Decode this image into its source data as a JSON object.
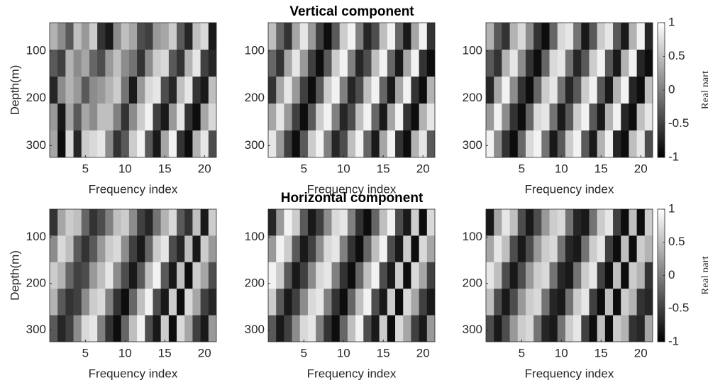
{
  "chart_data": [
    {
      "type": "heatmap",
      "title": "Vertical component",
      "xlabel": "Frequency index",
      "ylabel": "Depth(m)",
      "x": [
        1,
        2,
        3,
        4,
        5,
        6,
        7,
        8,
        9,
        10,
        11,
        12,
        13,
        14,
        15,
        16,
        17,
        18,
        19,
        20,
        21
      ],
      "y": [
        68.5,
        125.5,
        182.5,
        239.5,
        296.5
      ],
      "xlim": [
        0.5,
        21.5
      ],
      "ylim": [
        40,
        325
      ],
      "y_reverse": true,
      "xticks": [
        5,
        10,
        15,
        20
      ],
      "yticks": [
        100,
        200,
        300
      ],
      "values": [
        [
          0.4,
          0.1,
          -0.3,
          0.5,
          0.2,
          0.6,
          -0.6,
          -0.8,
          0.1,
          0.5,
          0.3,
          -0.4,
          -0.5,
          0.2,
          0.3,
          0.6,
          -0.3,
          -0.7,
          0.5,
          0.7,
          -0.8
        ],
        [
          -0.3,
          -0.5,
          0.4,
          0.1,
          0.3,
          -0.2,
          -0.4,
          0.2,
          0.5,
          0.1,
          -0.1,
          -0.6,
          0.1,
          0.6,
          0.7,
          -0.3,
          -0.6,
          0.4,
          0.8,
          -0.5,
          -0.7
        ],
        [
          -0.7,
          0.1,
          0.4,
          0.2,
          -0.3,
          0.1,
          0.2,
          0.4,
          0.6,
          -0.1,
          -0.8,
          0.2,
          0.7,
          0.8,
          -0.4,
          -0.7,
          0.5,
          0.8,
          -0.6,
          -0.8,
          0.5
        ],
        [
          0.2,
          -0.8,
          0.3,
          -0.3,
          0.3,
          0.1,
          0.5,
          0.5,
          0.0,
          -0.6,
          0.1,
          0.6,
          0.9,
          -0.5,
          -0.8,
          0.2,
          0.8,
          -0.6,
          -0.9,
          0.3,
          0.7
        ],
        [
          0.3,
          -0.9,
          0.7,
          -0.7,
          0.6,
          0.7,
          0.8,
          0.1,
          -0.6,
          -0.3,
          0.6,
          0.9,
          -0.3,
          -0.8,
          0.3,
          0.9,
          -0.6,
          -0.9,
          0.4,
          0.8,
          -0.4
        ]
      ]
    },
    {
      "type": "heatmap",
      "xlabel": "Frequency index",
      "x": [
        1,
        2,
        3,
        4,
        5,
        6,
        7,
        8,
        9,
        10,
        11,
        12,
        13,
        14,
        15,
        16,
        17,
        18,
        19,
        20,
        21
      ],
      "y": [
        68.5,
        125.5,
        182.5,
        239.5,
        296.5
      ],
      "xlim": [
        0.5,
        21.5
      ],
      "ylim": [
        40,
        325
      ],
      "y_reverse": true,
      "xticks": [
        5,
        10,
        15,
        20
      ],
      "yticks": [
        100,
        200,
        300
      ],
      "values": [
        [
          0.5,
          -0.2,
          -0.6,
          0.3,
          0.8,
          0.2,
          -0.5,
          -0.9,
          -0.3,
          0.6,
          0.9,
          0.0,
          -0.7,
          -0.4,
          0.5,
          0.9,
          -0.2,
          -0.8,
          0.3,
          0.9,
          -0.6
        ],
        [
          -0.2,
          -0.6,
          0.3,
          0.8,
          0.2,
          -0.5,
          -0.9,
          -0.3,
          0.6,
          0.9,
          0.0,
          -0.7,
          -0.4,
          0.5,
          0.9,
          -0.2,
          -0.8,
          0.3,
          0.9,
          -0.6,
          -0.9
        ],
        [
          -0.6,
          0.3,
          0.8,
          0.2,
          -0.5,
          -0.9,
          -0.3,
          0.6,
          0.9,
          0.0,
          -0.7,
          -0.4,
          0.5,
          0.9,
          -0.2,
          -0.8,
          0.3,
          0.9,
          -0.6,
          -0.9,
          0.4
        ],
        [
          0.3,
          0.8,
          0.2,
          -0.5,
          -0.9,
          -0.3,
          0.6,
          0.9,
          0.0,
          -0.7,
          -0.4,
          0.5,
          0.9,
          -0.2,
          -0.8,
          0.3,
          0.9,
          -0.6,
          -0.9,
          0.4,
          0.8
        ],
        [
          0.8,
          0.2,
          -0.5,
          -0.9,
          -0.3,
          0.6,
          0.9,
          0.0,
          -0.7,
          -0.4,
          0.5,
          0.9,
          -0.2,
          -0.8,
          0.3,
          0.9,
          -0.6,
          -0.9,
          0.4,
          0.8,
          -0.3
        ]
      ]
    },
    {
      "type": "heatmap",
      "xlabel": "Frequency index",
      "x": [
        1,
        2,
        3,
        4,
        5,
        6,
        7,
        8,
        9,
        10,
        11,
        12,
        13,
        14,
        15,
        16,
        17,
        18,
        19,
        20,
        21
      ],
      "y": [
        68.5,
        125.5,
        182.5,
        239.5,
        296.5
      ],
      "xlim": [
        0.5,
        21.5
      ],
      "ylim": [
        40,
        325
      ],
      "y_reverse": true,
      "xticks": [
        5,
        10,
        15,
        20
      ],
      "yticks": [
        100,
        200,
        300
      ],
      "colorbar": {
        "lim": [
          -1,
          1
        ],
        "ticks": [
          -1,
          -0.5,
          0,
          0.5,
          1
        ],
        "label": "Real part"
      },
      "values": [
        [
          0.4,
          -0.3,
          -0.6,
          0.4,
          0.7,
          0.1,
          -0.6,
          -0.9,
          -0.2,
          0.7,
          0.8,
          -0.1,
          -0.8,
          -0.3,
          0.6,
          0.8,
          -0.3,
          -0.8,
          0.4,
          0.9,
          -0.7
        ],
        [
          -0.3,
          -0.6,
          0.4,
          0.8,
          0.1,
          -0.6,
          -0.9,
          -0.2,
          0.7,
          0.8,
          -0.1,
          -0.7,
          -0.3,
          0.6,
          0.9,
          -0.3,
          -0.8,
          0.4,
          0.9,
          -0.7,
          -0.9
        ],
        [
          -0.7,
          0.3,
          0.9,
          0.1,
          -0.6,
          -0.9,
          -0.2,
          0.6,
          0.8,
          -0.1,
          -0.7,
          -0.3,
          0.6,
          0.9,
          -0.3,
          -0.8,
          0.4,
          0.9,
          -0.7,
          -0.9,
          0.5
        ],
        [
          0.2,
          0.9,
          0.1,
          -0.6,
          -0.9,
          -0.2,
          0.7,
          0.8,
          -0.1,
          -0.8,
          -0.3,
          0.6,
          0.9,
          -0.3,
          -0.8,
          0.4,
          0.9,
          -0.7,
          -0.9,
          0.5,
          0.8
        ],
        [
          0.9,
          0.1,
          -0.6,
          -0.9,
          -0.2,
          0.7,
          0.9,
          -0.1,
          -0.8,
          -0.3,
          0.6,
          0.9,
          -0.3,
          -0.8,
          0.4,
          0.9,
          -0.7,
          -0.9,
          0.5,
          0.8,
          -0.4
        ]
      ]
    },
    {
      "type": "heatmap",
      "title": "Horizontal component",
      "xlabel": "Frequency index",
      "ylabel": "Depth(m)",
      "x": [
        1,
        2,
        3,
        4,
        5,
        6,
        7,
        8,
        9,
        10,
        11,
        12,
        13,
        14,
        15,
        16,
        17,
        18,
        19,
        20,
        21
      ],
      "y": [
        68.5,
        125.5,
        182.5,
        239.5,
        296.5
      ],
      "xlim": [
        0.5,
        21.5
      ],
      "ylim": [
        40,
        325
      ],
      "y_reverse": true,
      "xticks": [
        5,
        10,
        15,
        20
      ],
      "yticks": [
        100,
        200,
        300
      ],
      "values": [
        [
          -0.6,
          0.3,
          0.6,
          0.5,
          -0.2,
          -0.6,
          -0.4,
          0.0,
          0.5,
          0.6,
          0.1,
          -0.5,
          -0.7,
          -0.1,
          0.4,
          0.7,
          -0.3,
          -0.6,
          0.5,
          -0.8,
          0.6
        ],
        [
          0.1,
          0.7,
          0.5,
          -0.3,
          -0.6,
          -0.3,
          0.2,
          0.6,
          0.7,
          0.1,
          -0.5,
          -0.8,
          -0.2,
          0.6,
          0.8,
          -0.4,
          -0.7,
          0.5,
          -0.8,
          0.6,
          0.2
        ],
        [
          0.6,
          0.4,
          -0.2,
          -0.5,
          -0.4,
          0.2,
          0.5,
          0.8,
          0.1,
          -0.4,
          -0.8,
          -0.3,
          0.5,
          0.9,
          -0.3,
          -0.8,
          0.5,
          -0.9,
          0.6,
          0.3,
          -0.4
        ],
        [
          0.4,
          -0.3,
          -0.6,
          -0.5,
          0.1,
          0.6,
          0.7,
          0.0,
          -0.6,
          -0.9,
          -0.2,
          0.5,
          0.9,
          -0.4,
          -0.8,
          0.6,
          -0.9,
          0.7,
          0.3,
          -0.5,
          -0.7
        ],
        [
          -0.3,
          -0.7,
          -0.5,
          0.1,
          0.7,
          0.8,
          0.0,
          -0.6,
          -0.9,
          -0.2,
          0.5,
          0.9,
          -0.4,
          -0.8,
          0.6,
          -0.9,
          0.7,
          0.3,
          -0.5,
          -0.8,
          0.2
        ]
      ]
    },
    {
      "type": "heatmap",
      "xlabel": "Frequency index",
      "x": [
        1,
        2,
        3,
        4,
        5,
        6,
        7,
        8,
        9,
        10,
        11,
        12,
        13,
        14,
        15,
        16,
        17,
        18,
        19,
        20,
        21
      ],
      "y": [
        68.5,
        125.5,
        182.5,
        239.5,
        296.5
      ],
      "xlim": [
        0.5,
        21.5
      ],
      "ylim": [
        40,
        325
      ],
      "y_reverse": true,
      "xticks": [
        5,
        10,
        15,
        20
      ],
      "yticks": [
        100,
        200,
        300
      ],
      "values": [
        [
          -0.7,
          0.2,
          0.9,
          0.6,
          -0.3,
          -0.8,
          -0.5,
          0.1,
          0.7,
          0.8,
          0.0,
          -0.6,
          -0.9,
          -0.2,
          0.5,
          0.9,
          -0.4,
          -0.8,
          0.6,
          -0.9,
          0.7
        ],
        [
          0.2,
          0.9,
          0.6,
          -0.3,
          -0.8,
          -0.5,
          0.1,
          0.7,
          0.8,
          0.0,
          -0.6,
          -0.9,
          -0.2,
          0.5,
          0.9,
          -0.4,
          -0.8,
          0.6,
          -0.9,
          0.7,
          0.3
        ],
        [
          0.9,
          0.6,
          -0.3,
          -0.8,
          -0.5,
          0.1,
          0.7,
          0.8,
          0.0,
          -0.6,
          -0.9,
          -0.2,
          0.5,
          0.9,
          -0.4,
          -0.8,
          0.6,
          -0.9,
          0.7,
          0.3,
          -0.5
        ],
        [
          0.6,
          -0.3,
          -0.8,
          -0.5,
          0.1,
          0.7,
          0.8,
          0.0,
          -0.6,
          -0.9,
          -0.2,
          0.5,
          0.9,
          -0.4,
          -0.8,
          0.6,
          -0.9,
          0.7,
          0.3,
          -0.5,
          -0.8
        ],
        [
          -0.3,
          -0.8,
          -0.5,
          0.1,
          0.7,
          0.8,
          0.0,
          -0.6,
          -0.9,
          -0.2,
          0.5,
          0.9,
          -0.4,
          -0.8,
          0.6,
          -0.9,
          0.7,
          0.3,
          -0.5,
          -0.8,
          0.2
        ]
      ]
    },
    {
      "type": "heatmap",
      "xlabel": "Frequency index",
      "x": [
        1,
        2,
        3,
        4,
        5,
        6,
        7,
        8,
        9,
        10,
        11,
        12,
        13,
        14,
        15,
        16,
        17,
        18,
        19,
        20,
        21
      ],
      "y": [
        68.5,
        125.5,
        182.5,
        239.5,
        296.5
      ],
      "xlim": [
        0.5,
        21.5
      ],
      "ylim": [
        40,
        325
      ],
      "y_reverse": true,
      "xticks": [
        5,
        10,
        15,
        20
      ],
      "yticks": [
        100,
        200,
        300
      ],
      "colorbar": {
        "lim": [
          -1,
          1
        ],
        "ticks": [
          -1,
          -0.5,
          0,
          0.5,
          1
        ],
        "label": "Real part"
      },
      "values": [
        [
          -0.8,
          0.3,
          0.8,
          0.5,
          -0.4,
          -0.8,
          -0.4,
          0.2,
          0.6,
          0.7,
          -0.1,
          -0.7,
          -0.8,
          -0.1,
          0.6,
          0.8,
          -0.5,
          -0.9,
          0.5,
          -0.9,
          0.6
        ],
        [
          0.3,
          0.8,
          0.5,
          -0.4,
          -0.8,
          -0.4,
          0.2,
          0.6,
          0.7,
          -0.1,
          -0.7,
          -0.8,
          -0.1,
          0.6,
          0.8,
          -0.5,
          -0.9,
          0.5,
          -0.9,
          0.6,
          0.4
        ],
        [
          0.8,
          0.5,
          -0.4,
          -0.8,
          -0.4,
          0.2,
          0.6,
          0.7,
          -0.1,
          -0.7,
          -0.8,
          -0.1,
          0.6,
          0.8,
          -0.5,
          -0.9,
          0.5,
          -0.9,
          0.6,
          0.4,
          -0.6
        ],
        [
          0.5,
          -0.4,
          -0.8,
          -0.4,
          0.2,
          0.6,
          0.7,
          -0.1,
          -0.7,
          -0.8,
          -0.1,
          0.6,
          0.8,
          -0.5,
          -0.9,
          0.5,
          -0.9,
          0.6,
          0.4,
          -0.6,
          -0.7
        ],
        [
          -0.4,
          -0.8,
          -0.4,
          0.2,
          0.6,
          0.7,
          -0.1,
          -0.7,
          -0.8,
          -0.1,
          0.6,
          0.8,
          -0.5,
          -0.9,
          0.5,
          -0.9,
          0.6,
          0.4,
          -0.6,
          -0.7,
          0.3
        ]
      ]
    }
  ]
}
